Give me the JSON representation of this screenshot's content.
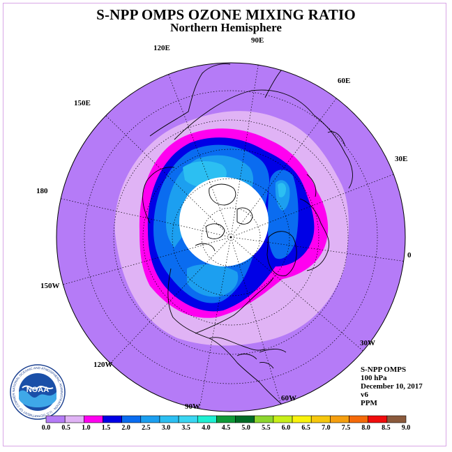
{
  "header": {
    "title": "S-NPP OMPS OZONE MIXING RATIO",
    "subtitle": "Northern Hemisphere"
  },
  "longitude_labels": {
    "l90e": "90E",
    "l60e": "60E",
    "l30e": "30E",
    "l0": "0",
    "l30w": "30W",
    "l60w": "60W",
    "l90w": "90W",
    "l120w": "120W",
    "l150w": "150W",
    "l180": "180",
    "l150e": "150E",
    "l120e": "120E"
  },
  "info": {
    "instrument": "S-NPP OMPS",
    "level": "100 hPa",
    "date": "December 10, 2017",
    "version": "v6",
    "units": "PPM"
  },
  "colorbar": {
    "ticks": [
      "0.0",
      "0.5",
      "1.0",
      "1.5",
      "2.0",
      "2.5",
      "3.0",
      "3.5",
      "4.0",
      "4.5",
      "5.0",
      "5.5",
      "6.0",
      "6.5",
      "7.0",
      "7.5",
      "8.0",
      "8.5",
      "9.0"
    ],
    "colors": [
      "#b57bf7",
      "#e0b3f5",
      "#ff00f0",
      "#0000e6",
      "#0a6cf0",
      "#1c9ff0",
      "#2cbff2",
      "#3ad6f2",
      "#1ef0d2",
      "#109a38",
      "#006b25",
      "#8dd62e",
      "#c8ef19",
      "#f9f20d",
      "#f6c70e",
      "#f59f10",
      "#f56a0a",
      "#f00d0d",
      "#8b5a3c"
    ]
  },
  "map_colors": {
    "background": "#b57bf7",
    "band_05": "#e0b3f5",
    "band_10": "#ff00f0",
    "band_15": "#0000e6",
    "band_20": "#0a6cf0",
    "band_25": "#1c9ff0",
    "band_30": "#2cbff2",
    "nodata": "#ffffff"
  },
  "logo": {
    "text": "NOAA",
    "ring_text": "NATIONAL OCEANIC AND ATMOSPHERIC ADMINISTRATION · U.S. DEPARTMENT OF COMMERCE"
  }
}
